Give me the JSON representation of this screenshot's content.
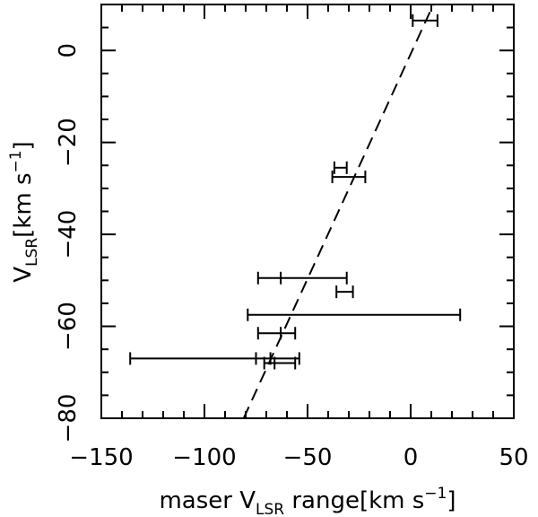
{
  "chart_data": {
    "type": "scatter",
    "title": "",
    "xlabel": {
      "prefix": "maser V",
      "sub": "LSR",
      "suffix": " range[km s",
      "sup": "−1",
      "end": "]"
    },
    "ylabel": {
      "prefix": "V",
      "sub": "LSR",
      "suffix": "[km s",
      "sup": "−1",
      "end": "]"
    },
    "xlim": [
      -150,
      50
    ],
    "ylim": [
      -80,
      10
    ],
    "xticks": [
      -150,
      -100,
      -50,
      0,
      50
    ],
    "xtick_labels": [
      "−150",
      "−100",
      "−50",
      "0",
      "50"
    ],
    "yticks": [
      -80,
      -60,
      -40,
      -20,
      0
    ],
    "ytick_labels": [
      "−80",
      "−60",
      "−40",
      "−20",
      "0"
    ],
    "grid": false,
    "legend": "none",
    "line_color": "#000000",
    "ranges": [
      {
        "y": 6.5,
        "xmin": 1,
        "xmax": 13
      },
      {
        "y": -25.5,
        "xmin": -37,
        "xmax": -31
      },
      {
        "y": -27.5,
        "xmin": -38,
        "xmax": -22
      },
      {
        "y": -49.5,
        "xmin": -74,
        "xmax": -31
      },
      {
        "y": -52.5,
        "xmin": -36,
        "xmax": -28
      },
      {
        "y": -57.5,
        "xmin": -79,
        "xmax": 24
      },
      {
        "y": -61.5,
        "xmin": -74,
        "xmax": -56
      },
      {
        "y": -67,
        "xmin": -136,
        "xmax": -54
      },
      {
        "y": -68,
        "xmin": -71,
        "xmax": -56
      }
    ],
    "extra_ticks": [
      {
        "x": -63,
        "y": -49.5
      },
      {
        "x": -63,
        "y": -61.5
      },
      {
        "x": -75,
        "y": -67
      },
      {
        "x": -68,
        "y": -67
      },
      {
        "x": -66,
        "y": -68
      }
    ],
    "fit_line": {
      "x": [
        -81,
        11
      ],
      "y": [
        -80,
        10
      ]
    }
  }
}
